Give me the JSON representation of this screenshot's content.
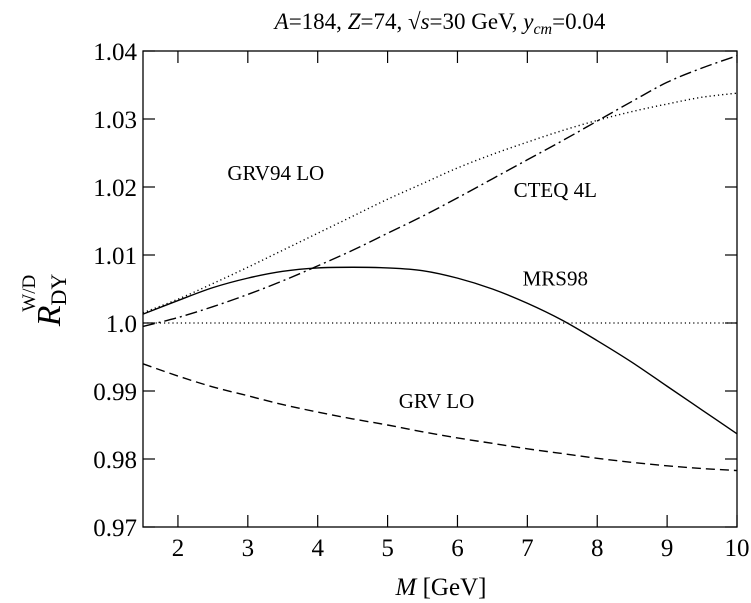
{
  "chart_data": {
    "type": "line",
    "title_parts": {
      "a_sym": "A",
      "a_val": "=184, ",
      "z_sym": "Z",
      "z_val": "=74, ",
      "sqrt": "√",
      "s_sym": "s",
      "s_val": "=30 GeV, ",
      "y_sym": "y",
      "y_sub": "cm",
      "y_val": "=0.04"
    },
    "xlabel_parts": {
      "sym": "M",
      "unit": " [GeV]"
    },
    "ylabel_parts": {
      "sym": "R",
      "sub": "DY",
      "sup": "W/D"
    },
    "xlim": [
      1.5,
      10
    ],
    "ylim": [
      0.97,
      1.04
    ],
    "x_ticks": [
      2,
      3,
      4,
      5,
      6,
      7,
      8,
      9,
      10
    ],
    "x_tick_labels": [
      "2",
      "3",
      "4",
      "5",
      "6",
      "7",
      "8",
      "9",
      "10"
    ],
    "y_ticks": [
      0.97,
      0.98,
      0.99,
      1.0,
      1.01,
      1.02,
      1.03,
      1.04
    ],
    "y_tick_labels": [
      "0.97",
      "0.98",
      "0.99",
      "1.0",
      "1.01",
      "1.02",
      "1.03",
      "1.04"
    ],
    "reference_line": {
      "y": 1.0,
      "style": "dotted"
    },
    "series": [
      {
        "name": "GRV94 LO",
        "style": "dotted",
        "label_at": [
          3.4,
          1.021
        ],
        "x": [
          1.5,
          2,
          2.5,
          3,
          3.5,
          4,
          4.5,
          5,
          5.5,
          6,
          6.5,
          7,
          7.5,
          8,
          8.5,
          9,
          9.5,
          10
        ],
        "y": [
          1.0015,
          1.0035,
          1.0058,
          1.0082,
          1.0107,
          1.0132,
          1.0157,
          1.0182,
          1.0205,
          1.0228,
          1.0248,
          1.0266,
          1.0283,
          1.0298,
          1.0311,
          1.0322,
          1.0332,
          1.0338
        ]
      },
      {
        "name": "CTEQ 4L",
        "style": "dashdot",
        "label_at": [
          7.4,
          1.0185
        ],
        "x": [
          1.5,
          2,
          2.5,
          3,
          3.5,
          4,
          4.5,
          5,
          5.5,
          6,
          6.5,
          7,
          7.5,
          8,
          8.5,
          9,
          9.5,
          10
        ],
        "y": [
          0.9995,
          1.0008,
          1.0024,
          1.0042,
          1.0062,
          1.0084,
          1.0107,
          1.0132,
          1.0157,
          1.0184,
          1.0212,
          1.024,
          1.0268,
          1.0297,
          1.0326,
          1.0354,
          1.0375,
          1.0393
        ]
      },
      {
        "name": "MRS98",
        "style": "solid",
        "label_at": [
          7.4,
          1.0055
        ],
        "x": [
          1.5,
          2,
          2.5,
          3,
          3.5,
          4,
          4.5,
          5,
          5.5,
          6,
          6.5,
          7,
          7.5,
          8,
          8.5,
          9,
          9.5,
          10
        ],
        "y": [
          1.0013,
          1.0033,
          1.0052,
          1.0066,
          1.0076,
          1.0081,
          1.0082,
          1.0081,
          1.0077,
          1.0066,
          1.005,
          1.0029,
          1.0004,
          0.9974,
          0.9942,
          0.9907,
          0.9872,
          0.9837
        ]
      },
      {
        "name": "GRV LO",
        "style": "dashed",
        "label_at": [
          5.7,
          0.9875
        ],
        "x": [
          1.5,
          2,
          2.5,
          3,
          3.5,
          4,
          4.5,
          5,
          5.5,
          6,
          6.5,
          7,
          7.5,
          8,
          8.5,
          9,
          9.5,
          10
        ],
        "y": [
          0.994,
          0.9922,
          0.9906,
          0.9893,
          0.988,
          0.9869,
          0.9859,
          0.985,
          0.984,
          0.9831,
          0.9823,
          0.9815,
          0.9808,
          0.9801,
          0.9795,
          0.979,
          0.9786,
          0.9783
        ]
      }
    ]
  }
}
